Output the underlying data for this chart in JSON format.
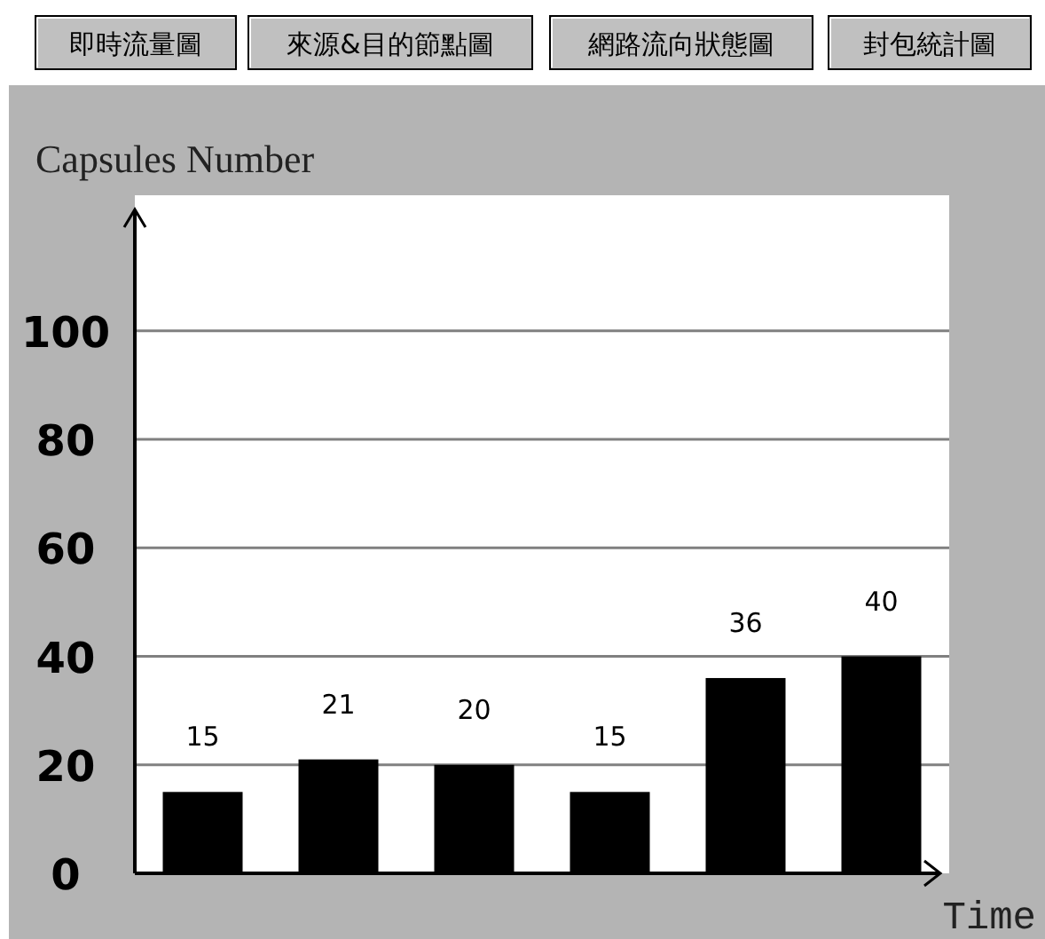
{
  "chart_data": {
    "type": "bar",
    "ylabel": "Capsules Number",
    "xlabel": "Time",
    "annotations": [
      "即時流量圖",
      "來源&目的節點圖",
      "網路流向狀態圖",
      "封包統計圖"
    ],
    "categories": [
      null,
      null,
      null,
      null,
      null,
      null
    ],
    "values": [
      15,
      21,
      20,
      15,
      36,
      40
    ],
    "color": "#000000",
    "ylim": [
      0,
      125
    ],
    "yticks": [
      0,
      20,
      40,
      60,
      80,
      100
    ],
    "grid": "y",
    "data_labels": true
  }
}
